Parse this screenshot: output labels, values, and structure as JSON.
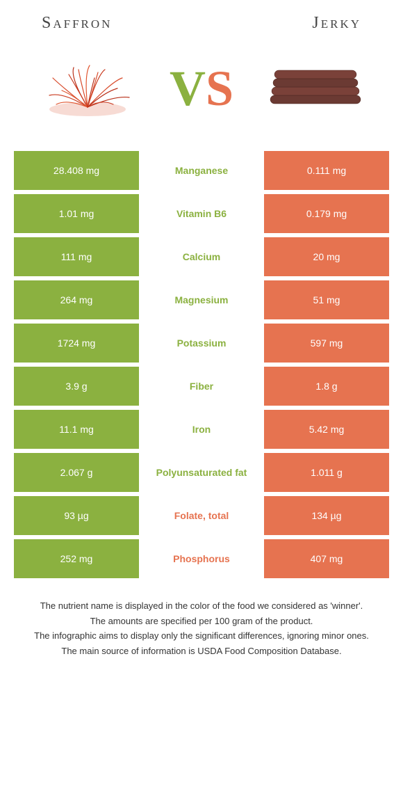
{
  "colors": {
    "green": "#8bb140",
    "orange": "#e67350",
    "mid_bg": "#ffffff",
    "white": "#ffffff"
  },
  "header": {
    "left": "Saffron",
    "right": "Jerky"
  },
  "vs": {
    "v": "V",
    "s": "S"
  },
  "rows": [
    {
      "left": "28.408 mg",
      "label": "Manganese",
      "right": "0.111 mg",
      "winner": "left"
    },
    {
      "left": "1.01 mg",
      "label": "Vitamin B6",
      "right": "0.179 mg",
      "winner": "left"
    },
    {
      "left": "111 mg",
      "label": "Calcium",
      "right": "20 mg",
      "winner": "left"
    },
    {
      "left": "264 mg",
      "label": "Magnesium",
      "right": "51 mg",
      "winner": "left"
    },
    {
      "left": "1724 mg",
      "label": "Potassium",
      "right": "597 mg",
      "winner": "left"
    },
    {
      "left": "3.9 g",
      "label": "Fiber",
      "right": "1.8 g",
      "winner": "left"
    },
    {
      "left": "11.1 mg",
      "label": "Iron",
      "right": "5.42 mg",
      "winner": "left"
    },
    {
      "left": "2.067 g",
      "label": "Polyunsaturated fat",
      "right": "1.011 g",
      "winner": "left"
    },
    {
      "left": "93 µg",
      "label": "Folate, total",
      "right": "134 µg",
      "winner": "right"
    },
    {
      "left": "252 mg",
      "label": "Phosphorus",
      "right": "407 mg",
      "winner": "right"
    }
  ],
  "footer": {
    "l1": "The nutrient name is displayed in the color of the food we considered as 'winner'.",
    "l2": "The amounts are specified per 100 gram of the product.",
    "l3": "The infographic aims to display only the significant differences, ignoring minor ones.",
    "l4": "The main source of information is USDA Food Composition Database."
  }
}
